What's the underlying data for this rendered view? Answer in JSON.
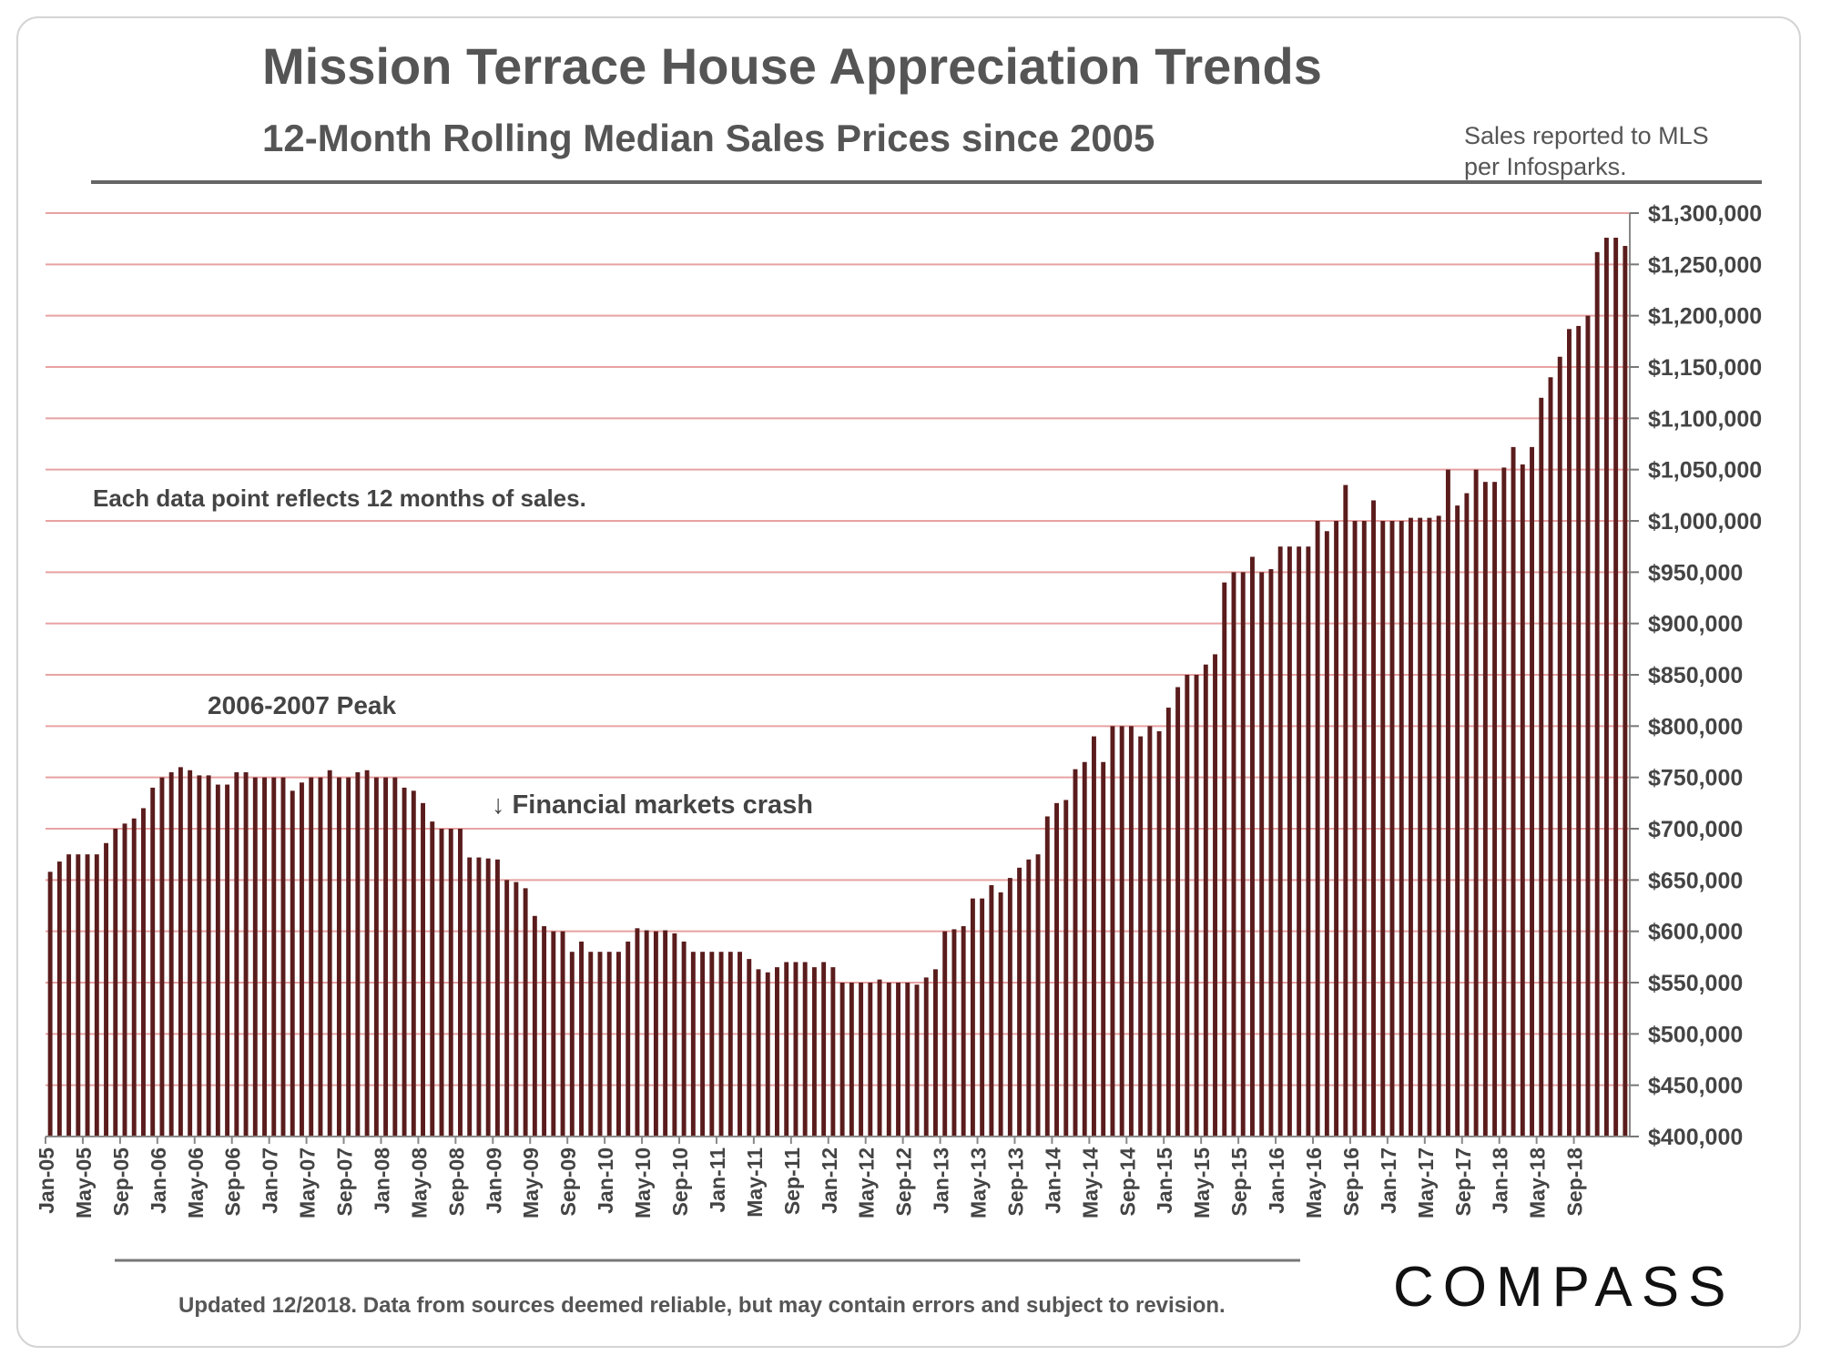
{
  "header": {
    "title": "Mission Terrace House Appreciation Trends",
    "subtitle": "12-Month Rolling Median Sales Prices since 2005",
    "source_note": "Sales reported to MLS per Infosparks."
  },
  "footer": {
    "note": "Updated 12/2018. Data from sources deemed reliable, but may contain errors and subject to revision.",
    "logo": "COMPASS"
  },
  "colors": {
    "bar": "#5a1c1c",
    "gridline": "#e8a2a2",
    "text": "#555555",
    "rule": "#666666"
  },
  "chart_data": {
    "type": "bar",
    "title": "12-Month Rolling Median Sales Prices since 2005",
    "xlabel": "",
    "ylabel": "",
    "ylim": [
      400000,
      1300000
    ],
    "ytick_values": [
      400000,
      450000,
      500000,
      550000,
      600000,
      650000,
      700000,
      750000,
      800000,
      850000,
      900000,
      950000,
      1000000,
      1050000,
      1100000,
      1150000,
      1200000,
      1250000,
      1300000
    ],
    "ytick_labels": [
      "$400,000",
      "$450,000",
      "$500,000",
      "$550,000",
      "$600,000",
      "$650,000",
      "$700,000",
      "$750,000",
      "$800,000",
      "$850,000",
      "$900,000",
      "$950,000",
      "$1,000,000",
      "$1,050,000",
      "$1,100,000",
      "$1,150,000",
      "$1,200,000",
      "$1,250,000",
      "$1,300,000"
    ],
    "xtick_labels": [
      "Jan-05",
      "May-05",
      "Sep-05",
      "Jan-06",
      "May-06",
      "Sep-06",
      "Jan-07",
      "May-07",
      "Sep-07",
      "Jan-08",
      "May-08",
      "Sep-08",
      "Jan-09",
      "May-09",
      "Sep-09",
      "Jan-10",
      "May-10",
      "Sep-10",
      "Jan-11",
      "May-11",
      "Sep-11",
      "Jan-12",
      "May-12",
      "Sep-12",
      "Jan-13",
      "May-13",
      "Sep-13",
      "Jan-14",
      "May-14",
      "Sep-14",
      "Jan-15",
      "May-15",
      "Sep-15",
      "Jan-16",
      "May-16",
      "Sep-16",
      "Jan-17",
      "May-17",
      "Sep-17",
      "Jan-18",
      "May-18",
      "Sep-18"
    ],
    "grid": true,
    "series": [
      {
        "name": "12-Month Rolling Median Sales Price",
        "start": "Jan-05",
        "end": "Dec-18",
        "values": [
          658000,
          668000,
          675000,
          675000,
          675000,
          675000,
          686000,
          700000,
          705000,
          710000,
          720000,
          740000,
          750000,
          755000,
          760000,
          757000,
          752000,
          752000,
          743000,
          743000,
          755000,
          755000,
          750000,
          750000,
          750000,
          750000,
          737000,
          745000,
          750000,
          750000,
          757000,
          750000,
          750000,
          755000,
          757000,
          750000,
          750000,
          750000,
          740000,
          737000,
          725000,
          707000,
          700000,
          700000,
          700000,
          672000,
          672000,
          671000,
          670000,
          650000,
          648000,
          642000,
          615000,
          605000,
          600000,
          600000,
          580000,
          590000,
          580000,
          580000,
          580000,
          580000,
          590000,
          603000,
          601000,
          600000,
          601000,
          598000,
          590000,
          580000,
          580000,
          580000,
          580000,
          580000,
          580000,
          573000,
          563000,
          560000,
          565000,
          570000,
          570000,
          570000,
          565000,
          570000,
          565000,
          550000,
          550000,
          550000,
          550000,
          553000,
          550000,
          550000,
          550000,
          548000,
          555000,
          563000,
          600000,
          602000,
          605000,
          632000,
          632000,
          645000,
          638000,
          652000,
          662000,
          670000,
          675000,
          712000,
          725000,
          728000,
          758000,
          765000,
          790000,
          765000,
          800000,
          800000,
          800000,
          790000,
          800000,
          795000,
          818000,
          838000,
          850000,
          850000,
          860000,
          870000,
          940000,
          950000,
          950000,
          965000,
          950000,
          953000,
          975000,
          975000,
          975000,
          975000,
          1000000,
          990000,
          1000000,
          1035000,
          1000000,
          1000000,
          1020000,
          1000000,
          1000000,
          1000000,
          1003000,
          1003000,
          1003000,
          1005000,
          1050000,
          1015000,
          1027000,
          1050000,
          1038000,
          1038000,
          1052000,
          1072000,
          1055000,
          1072000,
          1120000,
          1140000,
          1160000,
          1187000,
          1190000,
          1200000,
          1262000,
          1276000,
          1276000,
          1268000
        ]
      }
    ],
    "annotations": [
      {
        "text": "Each data point reflects 12 months of sales."
      },
      {
        "text": "2006-2007 Peak"
      },
      {
        "text": "↓ Financial markets crash"
      }
    ]
  }
}
